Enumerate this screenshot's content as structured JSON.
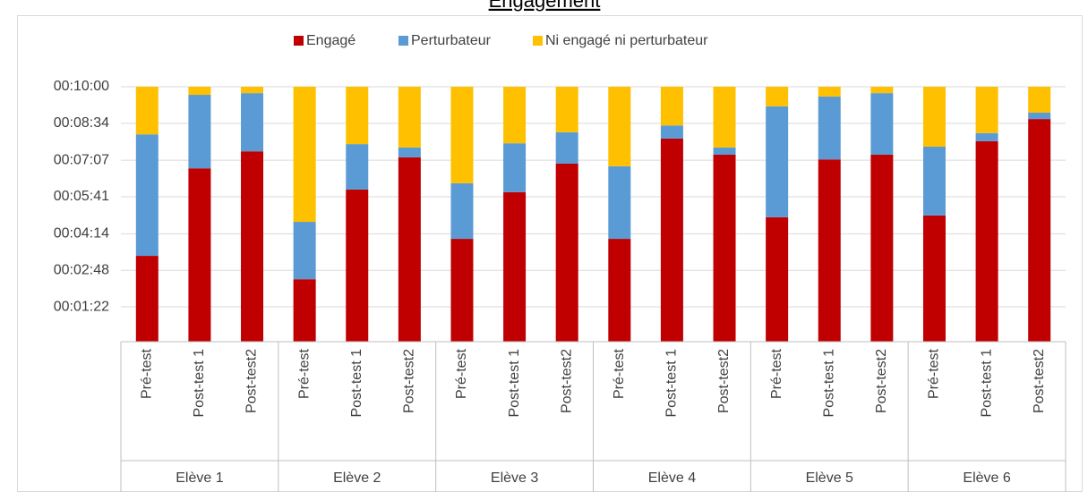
{
  "chart_data": {
    "type": "stacked_bar",
    "title": "Engagement",
    "groups": [
      "Elève 1",
      "Elève 2",
      "Elève 3",
      "Elève 4",
      "Elève 5",
      "Elève 6"
    ],
    "categories": [
      "Pré-test",
      "Post-test 1",
      "Post-test2",
      "Pré-test",
      "Post-test 1",
      "Post-test2",
      "Pré-test",
      "Post-test 1",
      "Post-test2",
      "Pré-test",
      "Post-test 1",
      "Post-test2",
      "Pré-test",
      "Post-test 1",
      "Post-test2",
      "Pré-test",
      "Post-test 1",
      "Post-test2"
    ],
    "series": [
      {
        "name": "Engagé",
        "color": "#c00000",
        "values": [
          202,
          408,
          448,
          147,
          358,
          434,
          242,
          352,
          419,
          242,
          478,
          440,
          293,
          429,
          440,
          297,
          472,
          524
        ]
      },
      {
        "name": "Perturbateur",
        "color": "#5b9bd5",
        "values": [
          286,
          173,
          137,
          135,
          107,
          23,
          131,
          115,
          74,
          171,
          31,
          17,
          261,
          148,
          145,
          162,
          19,
          15
        ]
      },
      {
        "name": "Ni engagé ni perturbateur",
        "color": "#ffc000",
        "values": [
          112,
          19,
          15,
          318,
          135,
          143,
          227,
          133,
          107,
          187,
          91,
          143,
          46,
          23,
          15,
          141,
          109,
          61
        ]
      }
    ],
    "ylim": [
      0,
      600
    ],
    "yticks": [
      {
        "value": 82,
        "label": "00:01:22"
      },
      {
        "value": 168,
        "label": "00:02:48"
      },
      {
        "value": 254,
        "label": "00:04:14"
      },
      {
        "value": 341,
        "label": "00:05:41"
      },
      {
        "value": 427,
        "label": "00:07:07"
      },
      {
        "value": 514,
        "label": "00:08:34"
      },
      {
        "value": 600,
        "label": "00:10:00"
      }
    ],
    "grid": true,
    "legend": "top"
  }
}
